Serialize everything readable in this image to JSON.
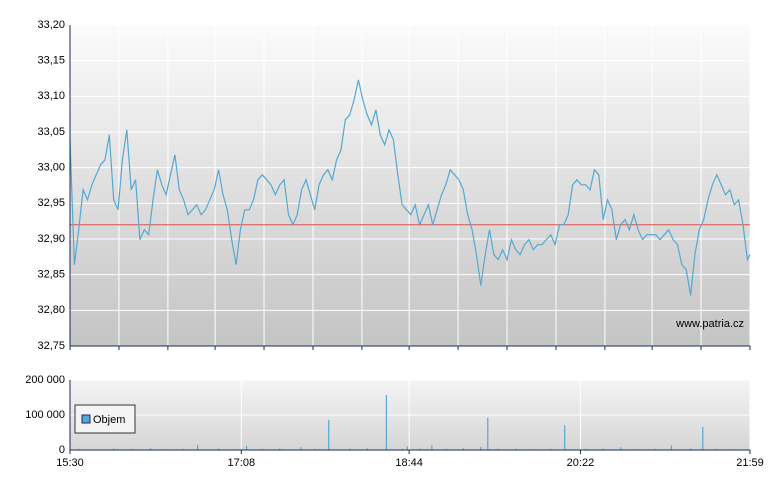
{
  "chart_data": [
    {
      "type": "line",
      "color": "#55a8d2",
      "reference_line": 32.92,
      "reference_color": "#d9534f",
      "watermark": "www.patria.cz",
      "xlim": [
        0,
        389
      ],
      "xticks": [
        0,
        28,
        56,
        83,
        111,
        139,
        167,
        194,
        222,
        250,
        278,
        306,
        333,
        361,
        389
      ],
      "ylim": [
        32.75,
        33.2
      ],
      "yticks": [
        {
          "value": 32.75,
          "label": "32,75"
        },
        {
          "value": 32.8,
          "label": "32,80"
        },
        {
          "value": 32.85,
          "label": "32,85"
        },
        {
          "value": 32.9,
          "label": "32,90"
        },
        {
          "value": 32.95,
          "label": "32,95"
        },
        {
          "value": 33.0,
          "label": "33,00"
        },
        {
          "value": 33.05,
          "label": "33,05"
        },
        {
          "value": 33.1,
          "label": "33,10"
        },
        {
          "value": 33.15,
          "label": "33,15"
        },
        {
          "value": 33.2,
          "label": "33,20"
        }
      ],
      "grid": true,
      "x": [
        0,
        2.5,
        5,
        7.5,
        10,
        12.5,
        15,
        17.5,
        20,
        22.5,
        25,
        27.5,
        30,
        32.5,
        35,
        37.5,
        40,
        42.5,
        45,
        47.5,
        50,
        52.5,
        55,
        57.5,
        60,
        62.5,
        65,
        67.5,
        70,
        72.5,
        75,
        77.5,
        80,
        82.5,
        85,
        87.5,
        90,
        92.5,
        95,
        97.5,
        100,
        102.5,
        105,
        107.5,
        110,
        112.5,
        115,
        117.5,
        120,
        122.5,
        125,
        127.5,
        130,
        132.5,
        135,
        137.5,
        140,
        142.5,
        145,
        147.5,
        150,
        152.5,
        155,
        157.5,
        160,
        162.5,
        165,
        167.5,
        170,
        172.5,
        175,
        177.5,
        180,
        182.5,
        185,
        187.5,
        190,
        192.5,
        195,
        197.5,
        200,
        202.5,
        205,
        207.5,
        210,
        212.5,
        215,
        217.5,
        220,
        222.5,
        225,
        227.5,
        230,
        232.5,
        235,
        237.5,
        240,
        242.5,
        245,
        247.5,
        250,
        252.5,
        255,
        257.5,
        260,
        262.5,
        265,
        267.5,
        270,
        272.5,
        275,
        277.5,
        280,
        282.5,
        285,
        287.5,
        290,
        292.5,
        295,
        297.5,
        300,
        302.5,
        305,
        307.5,
        310,
        312.5,
        315,
        317.5,
        320,
        322.5,
        325,
        327.5,
        330,
        332.5,
        335,
        337.5,
        340,
        342.5,
        345,
        347.5,
        350,
        352.5,
        355,
        357.5,
        360,
        362.5,
        365,
        367.5,
        370,
        372.5,
        375,
        377.5,
        380,
        382.5,
        385,
        387.5,
        389
      ],
      "values": [
        33.039,
        32.864,
        32.913,
        32.969,
        32.955,
        32.976,
        32.99,
        33.004,
        33.011,
        33.046,
        32.955,
        32.941,
        33.011,
        33.053,
        32.969,
        32.983,
        32.899,
        32.913,
        32.906,
        32.955,
        32.997,
        32.976,
        32.962,
        32.99,
        33.018,
        32.969,
        32.955,
        32.934,
        32.941,
        32.948,
        32.934,
        32.941,
        32.955,
        32.969,
        32.997,
        32.962,
        32.941,
        32.899,
        32.864,
        32.913,
        32.941,
        32.941,
        32.955,
        32.983,
        32.99,
        32.983,
        32.976,
        32.962,
        32.976,
        32.983,
        32.934,
        32.92,
        32.934,
        32.969,
        32.983,
        32.962,
        32.941,
        32.976,
        32.99,
        32.997,
        32.983,
        33.011,
        33.025,
        33.067,
        33.074,
        33.095,
        33.123,
        33.095,
        33.074,
        33.06,
        33.081,
        33.046,
        33.032,
        33.053,
        33.039,
        32.99,
        32.948,
        32.941,
        32.934,
        32.948,
        32.92,
        32.934,
        32.948,
        32.92,
        32.941,
        32.962,
        32.976,
        32.997,
        32.99,
        32.983,
        32.969,
        32.934,
        32.913,
        32.878,
        32.835,
        32.878,
        32.913,
        32.878,
        32.871,
        32.885,
        32.871,
        32.899,
        32.885,
        32.878,
        32.892,
        32.899,
        32.885,
        32.892,
        32.892,
        32.899,
        32.906,
        32.892,
        32.92,
        32.92,
        32.934,
        32.976,
        32.983,
        32.976,
        32.976,
        32.969,
        32.997,
        32.99,
        32.927,
        32.955,
        32.941,
        32.899,
        32.92,
        32.927,
        32.913,
        32.934,
        32.913,
        32.899,
        32.906,
        32.906,
        32.906,
        32.899,
        32.906,
        32.913,
        32.899,
        32.892,
        32.864,
        32.857,
        32.821,
        32.878,
        32.913,
        32.927,
        32.955,
        32.976,
        32.99,
        32.976,
        32.962,
        32.969,
        32.948,
        32.955,
        32.92,
        32.871,
        32.878
      ]
    },
    {
      "type": "bar",
      "color": "#55a8d2",
      "legend": "Objem",
      "xlim": [
        0,
        389
      ],
      "xticks": [
        {
          "value": 0,
          "label": "15:30"
        },
        {
          "value": 98,
          "label": "17:08"
        },
        {
          "value": 194,
          "label": "18:44"
        },
        {
          "value": 292,
          "label": "20:22"
        },
        {
          "value": 389,
          "label": "21:59"
        }
      ],
      "ylim": [
        0,
        200000
      ],
      "yticks": [
        0,
        {
          "value": 100000,
          "label": "100 000"
        },
        {
          "value": 200000,
          "label": "200 000"
        }
      ],
      "grid": true,
      "x": [
        5,
        15,
        25,
        35,
        46,
        55,
        65,
        73,
        85,
        95,
        101,
        110,
        120,
        132,
        140,
        148,
        160,
        170,
        181,
        190,
        193,
        200,
        207,
        215,
        225,
        235,
        239,
        245,
        255,
        265,
        275,
        283,
        295,
        305,
        315,
        325,
        335,
        344,
        355,
        362,
        370,
        380
      ],
      "values": [
        3000,
        2000,
        4000,
        3000,
        5000,
        2000,
        3000,
        15000,
        4000,
        2000,
        12000,
        3000,
        4000,
        8000,
        3000,
        86000,
        4000,
        5000,
        157000,
        3000,
        10000,
        4000,
        13000,
        3000,
        5000,
        9000,
        92000,
        3000,
        4000,
        2000,
        3000,
        71000,
        3000,
        4000,
        8000,
        2000,
        3000,
        13000,
        4000,
        66000,
        3000,
        2000
      ]
    }
  ]
}
